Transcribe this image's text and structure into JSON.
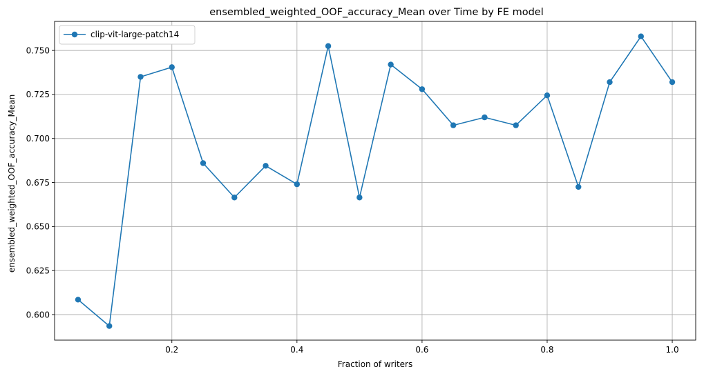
{
  "chart_data": {
    "type": "line",
    "title": "ensembled_weighted_OOF_accuracy_Mean over Time by FE model",
    "xlabel": "Fraction of writers",
    "ylabel": "ensembled_weighted_OOF_accuracy_Mean",
    "xlim": [
      0.0125,
      1.0375
    ],
    "ylim": [
      0.5855,
      0.7665
    ],
    "xticks": [
      0.2,
      0.4,
      0.6,
      0.8,
      1.0
    ],
    "xtick_labels": [
      "0.2",
      "0.4",
      "0.6",
      "0.8",
      "1.0"
    ],
    "yticks": [
      0.6,
      0.625,
      0.65,
      0.675,
      0.7,
      0.725,
      0.75
    ],
    "ytick_labels": [
      "0.600",
      "0.625",
      "0.650",
      "0.675",
      "0.700",
      "0.725",
      "0.750"
    ],
    "grid": true,
    "legend_position": "top-left",
    "x": [
      0.05,
      0.1,
      0.15,
      0.2,
      0.25,
      0.3,
      0.35,
      0.4,
      0.45,
      0.5,
      0.55,
      0.6,
      0.65,
      0.7,
      0.75,
      0.8,
      0.85,
      0.9,
      0.95,
      1.0
    ],
    "series": [
      {
        "name": "clip-vit-large-patch14",
        "color": "#1f77b4",
        "marker": "circle",
        "values": [
          0.6085,
          0.5935,
          0.735,
          0.7405,
          0.686,
          0.6665,
          0.6845,
          0.674,
          0.7525,
          0.6665,
          0.742,
          0.728,
          0.7075,
          0.712,
          0.7075,
          0.7245,
          0.6725,
          0.732,
          0.758,
          0.732
        ]
      }
    ]
  }
}
